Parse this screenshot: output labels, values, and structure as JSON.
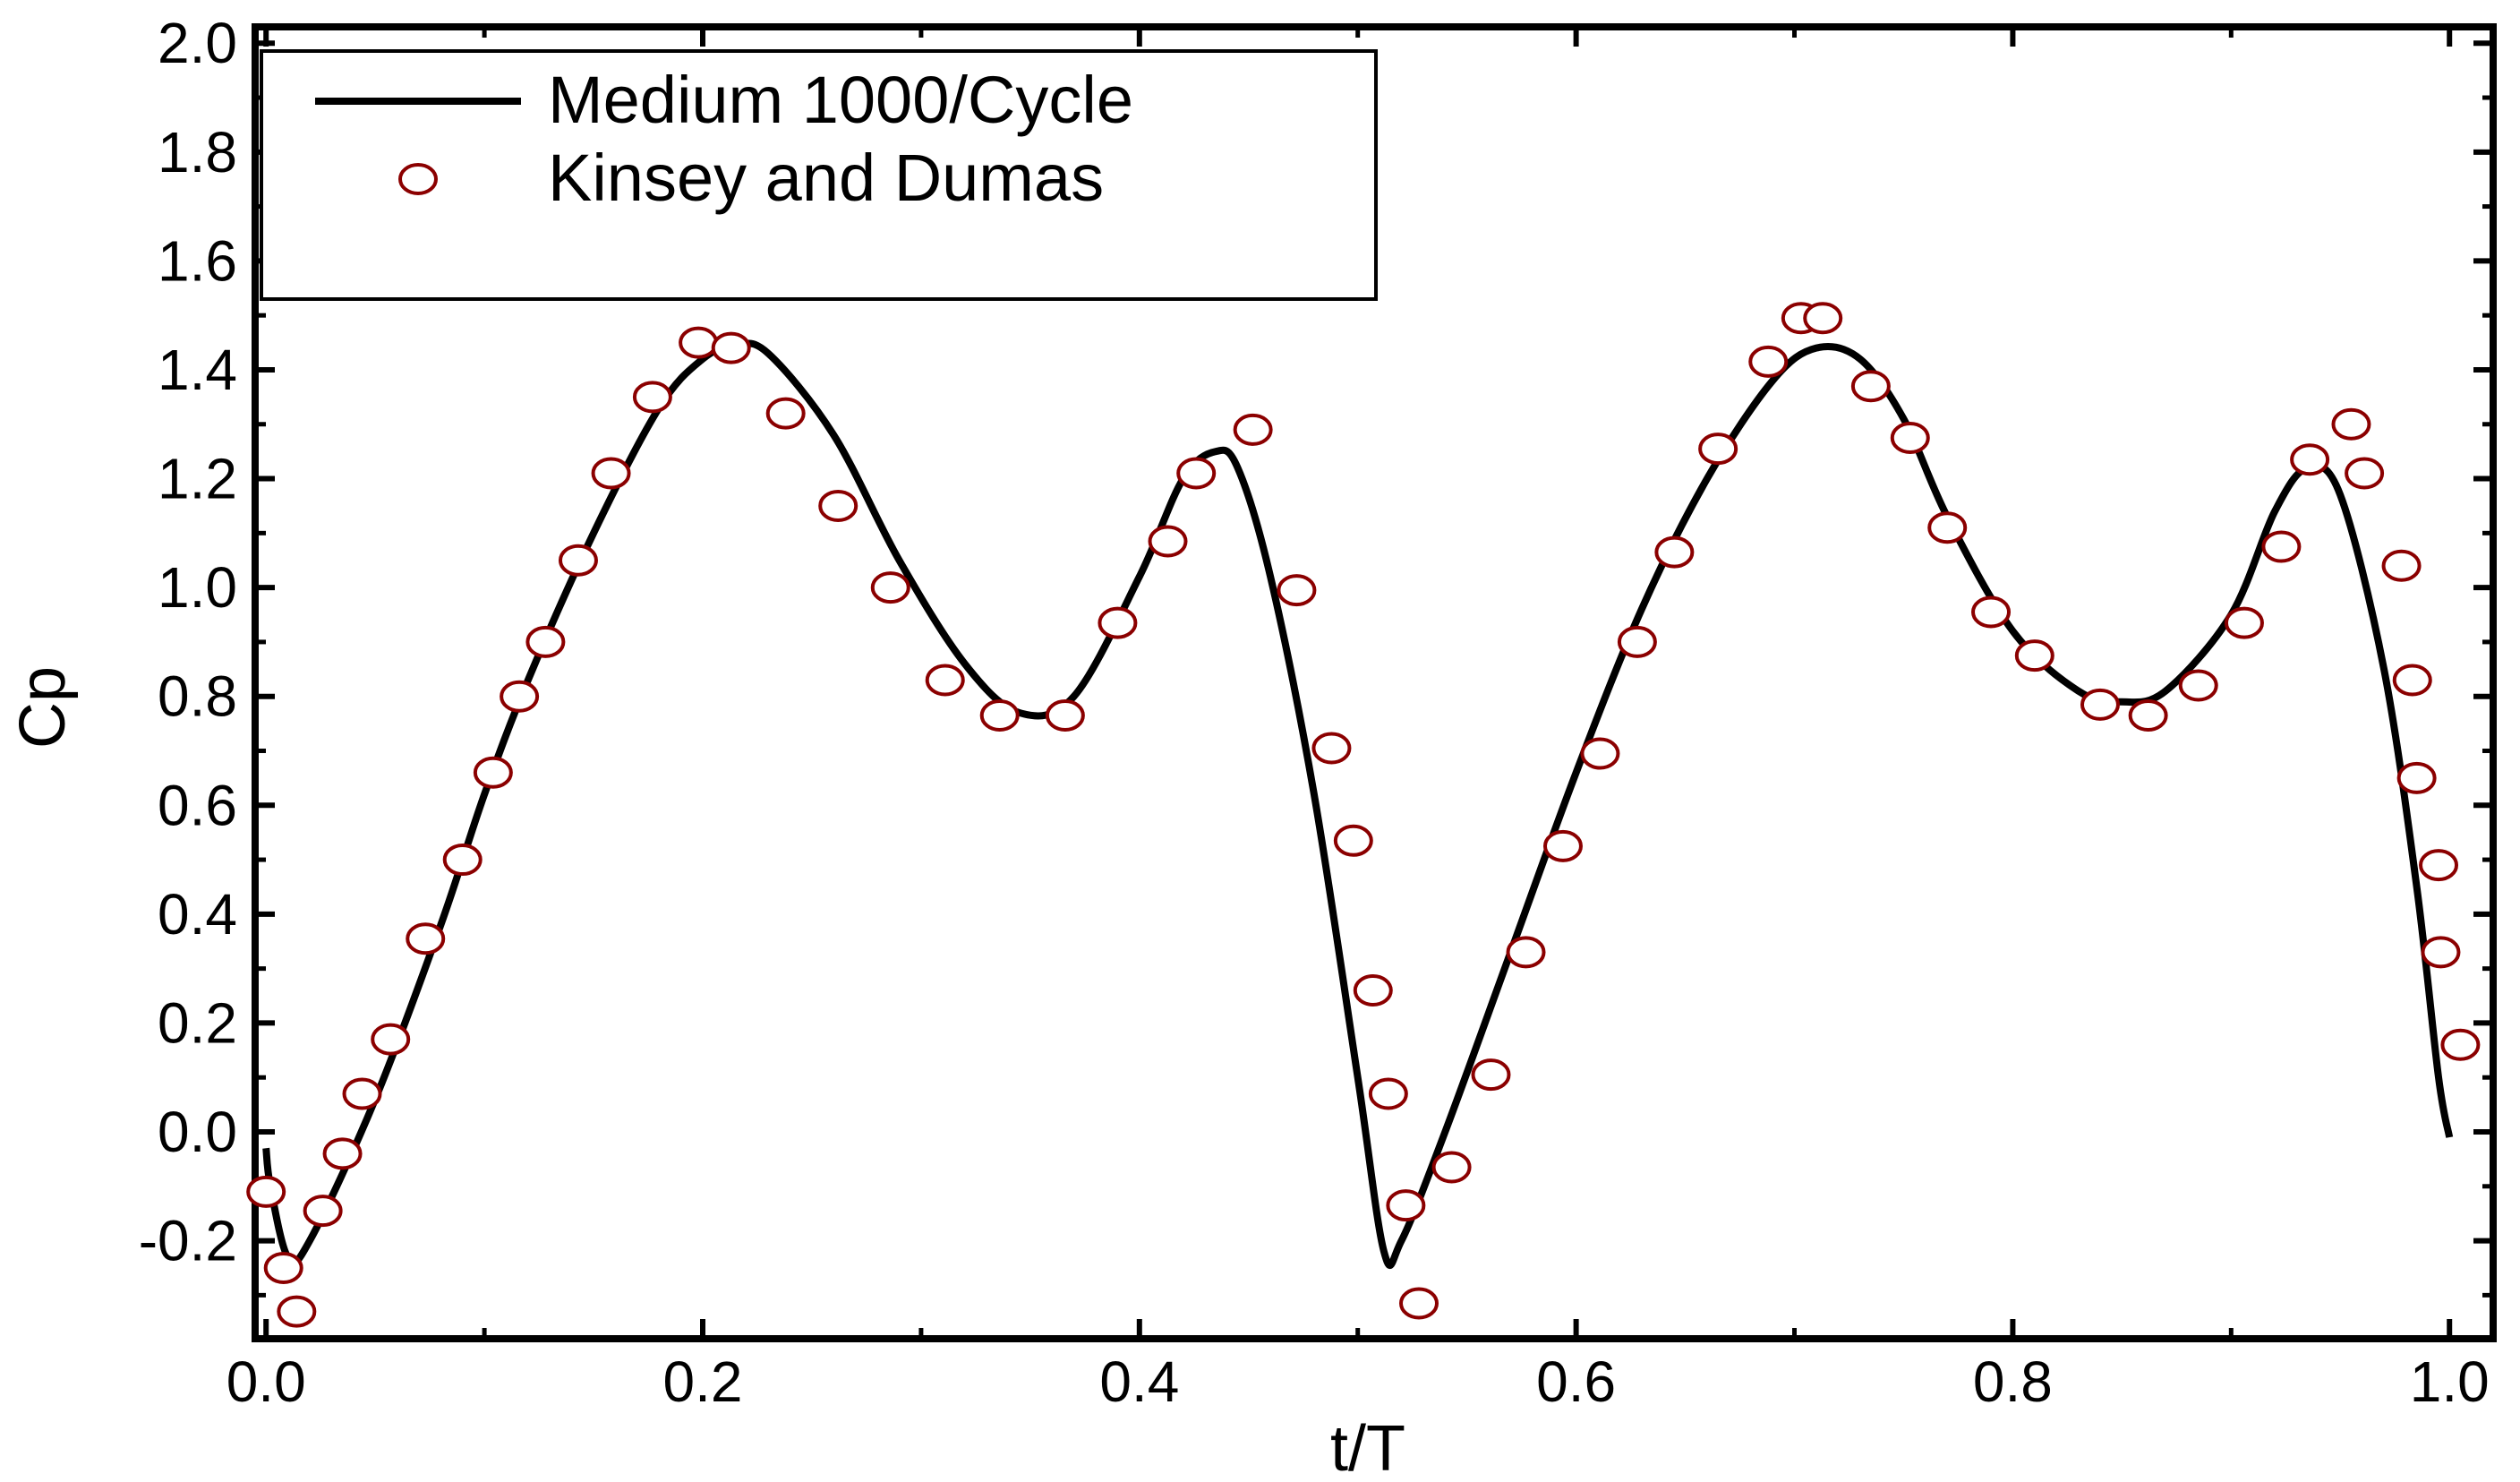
{
  "chart_data": {
    "type": "line",
    "title": "",
    "xlabel": "t/T",
    "ylabel": "Cp",
    "xlim": [
      -0.005,
      1.02
    ],
    "ylim": [
      -0.38,
      2.03
    ],
    "x_ticks": [
      0.0,
      0.2,
      0.4,
      0.6,
      0.8,
      1.0
    ],
    "x_tick_labels": [
      "0.0",
      "0.2",
      "0.4",
      "0.6",
      "0.8",
      "1.0"
    ],
    "y_ticks": [
      -0.2,
      0.0,
      0.2,
      0.4,
      0.6,
      0.8,
      1.0,
      1.2,
      1.4,
      1.6,
      1.8,
      2.0
    ],
    "y_tick_labels": [
      "-0.2",
      "0.0",
      "0.2",
      "0.4",
      "0.6",
      "0.8",
      "1.0",
      "1.2",
      "1.4",
      "1.6",
      "1.8",
      "2.0"
    ],
    "grid": false,
    "legend_position": "top-left",
    "colors": {
      "line": "#000000",
      "marker_stroke": "#8b0000",
      "marker_fill": "#ffffff"
    },
    "series": [
      {
        "name": "Medium 1000/Cycle",
        "kind": "line",
        "x": [
          0.0,
          0.002,
          0.01,
          0.02,
          0.05,
          0.08,
          0.1,
          0.12,
          0.15,
          0.18,
          0.2,
          0.215,
          0.23,
          0.26,
          0.29,
          0.32,
          0.345,
          0.37,
          0.4,
          0.42,
          0.435,
          0.445,
          0.46,
          0.48,
          0.5,
          0.512,
          0.52,
          0.54,
          0.57,
          0.6,
          0.63,
          0.66,
          0.69,
          0.71,
          0.73,
          0.75,
          0.77,
          0.8,
          0.83,
          0.85,
          0.87,
          0.9,
          0.92,
          0.935,
          0.95,
          0.97,
          0.985,
          0.995,
          1.0
        ],
        "y": [
          -0.03,
          -0.1,
          -0.23,
          -0.2,
          0.06,
          0.38,
          0.62,
          0.83,
          1.1,
          1.33,
          1.42,
          1.445,
          1.43,
          1.28,
          1.05,
          0.86,
          0.77,
          0.8,
          1.02,
          1.2,
          1.25,
          1.22,
          1.02,
          0.62,
          0.1,
          -0.22,
          -0.2,
          0.0,
          0.33,
          0.66,
          0.96,
          1.2,
          1.38,
          1.44,
          1.42,
          1.31,
          1.13,
          0.92,
          0.81,
          0.79,
          0.81,
          0.95,
          1.14,
          1.22,
          1.17,
          0.85,
          0.45,
          0.1,
          -0.01
        ]
      },
      {
        "name": "Kinsey and Dumas",
        "kind": "scatter",
        "x": [
          0.0,
          0.008,
          0.014,
          0.026,
          0.035,
          0.044,
          0.057,
          0.073,
          0.09,
          0.104,
          0.116,
          0.128,
          0.143,
          0.158,
          0.177,
          0.198,
          0.213,
          0.238,
          0.262,
          0.286,
          0.311,
          0.336,
          0.366,
          0.39,
          0.413,
          0.426,
          0.452,
          0.472,
          0.488,
          0.498,
          0.507,
          0.514,
          0.522,
          0.528,
          0.543,
          0.561,
          0.577,
          0.594,
          0.611,
          0.628,
          0.645,
          0.665,
          0.688,
          0.703,
          0.713,
          0.735,
          0.753,
          0.77,
          0.79,
          0.81,
          0.84,
          0.862,
          0.885,
          0.906,
          0.923,
          0.936,
          0.955,
          0.961,
          0.978,
          0.983,
          0.985,
          0.995,
          0.996,
          1.005
        ],
        "y": [
          -0.11,
          -0.25,
          -0.33,
          -0.145,
          -0.04,
          0.07,
          0.17,
          0.355,
          0.5,
          0.66,
          0.8,
          0.9,
          1.05,
          1.21,
          1.35,
          1.45,
          1.44,
          1.32,
          1.15,
          1.0,
          0.83,
          0.765,
          0.765,
          0.935,
          1.085,
          1.21,
          1.29,
          0.995,
          0.705,
          0.535,
          0.26,
          0.07,
          -0.135,
          -0.315,
          -0.065,
          0.105,
          0.33,
          0.525,
          0.695,
          0.9,
          1.065,
          1.255,
          1.415,
          1.495,
          1.495,
          1.37,
          1.275,
          1.11,
          0.955,
          0.875,
          0.785,
          0.765,
          0.82,
          0.935,
          1.075,
          1.235,
          1.3,
          1.21,
          1.04,
          0.83,
          0.65,
          0.49,
          0.33,
          0.16
        ]
      }
    ]
  }
}
